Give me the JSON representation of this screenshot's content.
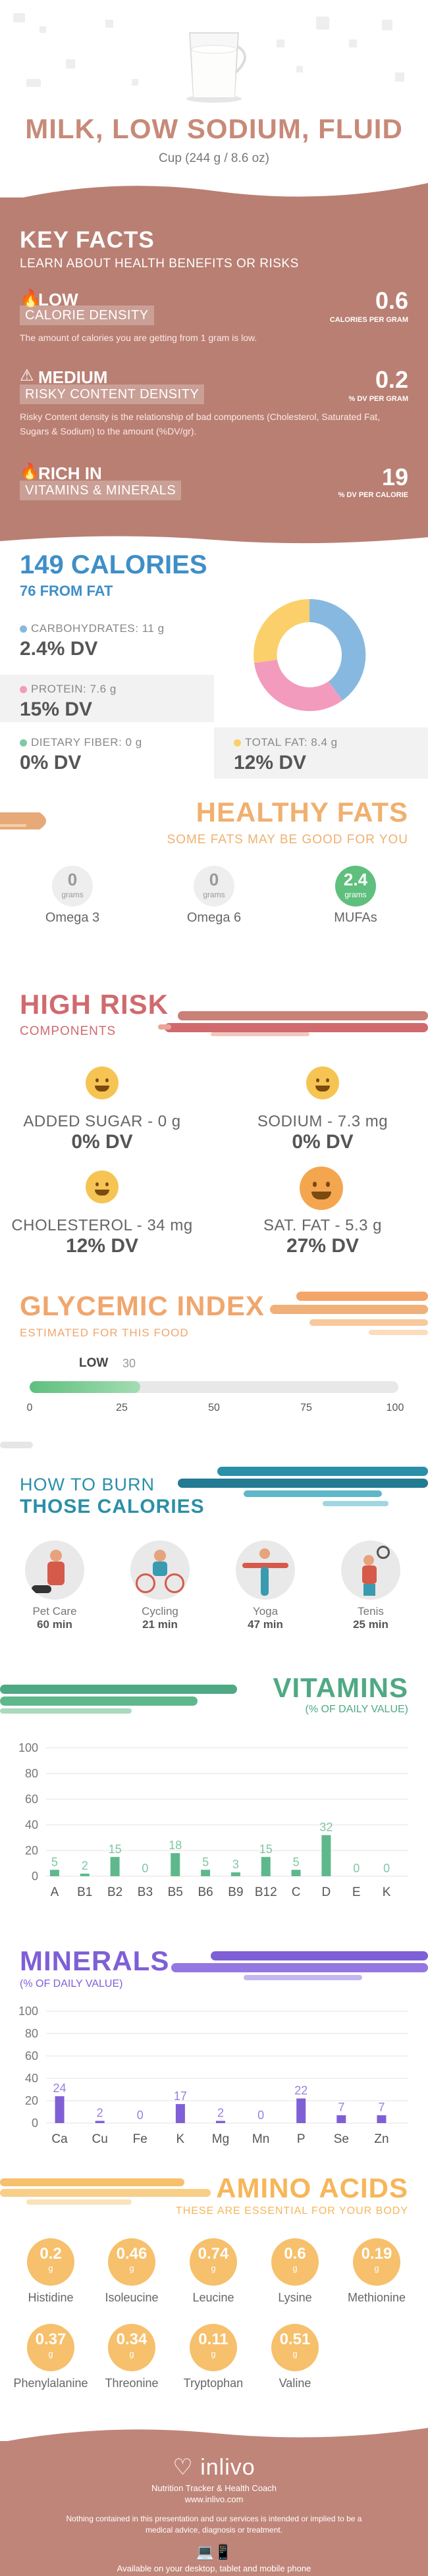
{
  "header": {
    "title": "MILK, LOW SODIUM, FLUID",
    "serving": "Cup (244 g / 8.6 oz)"
  },
  "key_facts": {
    "title": "KEY FACTS",
    "subtitle": "LEARN ABOUT HEALTH BENEFITS OR RISKS",
    "items": [
      {
        "level": "LOW",
        "label": "CALORIE DENSITY",
        "value": "0.6",
        "unit": "CALORIES PER GRAM",
        "desc": "The amount of calories you are getting from 1 gram is low."
      },
      {
        "level": "MEDIUM",
        "label": "RISKY CONTENT DENSITY",
        "value": "0.2",
        "unit": "% DV PER GRAM",
        "desc": "Risky Content density is the relationship of bad components (Cholesterol, Saturated Fat, Sugars & Sodium) to the amount (%DV/gr)."
      },
      {
        "level": "RICH IN",
        "label": "VITAMINS & MINERALS",
        "value": "19",
        "unit": "% DV PER CALORIE",
        "desc": ""
      }
    ]
  },
  "calories": {
    "title": "149 CALORIES",
    "from_fat": "76 FROM FAT",
    "nutrients": [
      {
        "label": "CARBOHYDRATES: 11 g",
        "value": "2.4% DV",
        "color": "#87b9e0"
      },
      {
        "label": "PROTEIN: 7.6 g",
        "value": "15% DV",
        "color": "#f39bbd"
      },
      {
        "label": "DIETARY FIBER: 0 g",
        "value": "0% DV",
        "color": "#7ec9a8"
      },
      {
        "label": "TOTAL FAT: 8.4 g",
        "value": "12% DV",
        "color": "#fbd06b"
      }
    ]
  },
  "healthy_fats": {
    "title": "HEALTHY FATS",
    "subtitle": "SOME FATS MAY BE GOOD FOR YOU",
    "items": [
      {
        "value": "0",
        "unit": "grams",
        "name": "Omega 3"
      },
      {
        "value": "0",
        "unit": "grams",
        "name": "Omega 6"
      },
      {
        "value": "2.4",
        "unit": "grams",
        "name": "MUFAs"
      }
    ]
  },
  "high_risk": {
    "title": "HIGH RISK",
    "subtitle": "COMPONENTS",
    "items": [
      {
        "label": "ADDED SUGAR - 0 g",
        "value": "0% DV"
      },
      {
        "label": "SODIUM - 7.3 mg",
        "value": "0% DV"
      },
      {
        "label": "CHOLESTEROL - 34 mg",
        "value": "12% DV"
      },
      {
        "label": "SAT. FAT - 5.3 g",
        "value": "27% DV"
      }
    ]
  },
  "glycemic": {
    "title": "GLYCEMIC INDEX",
    "subtitle": "ESTIMATED FOR THIS FOOD",
    "level": "LOW",
    "value": 30,
    "ticks": [
      "0",
      "25",
      "50",
      "75",
      "100"
    ]
  },
  "burn": {
    "title1": "HOW TO BURN",
    "title2": "THOSE CALORIES",
    "activities": [
      {
        "name": "Pet Care",
        "time": "60 min"
      },
      {
        "name": "Cycling",
        "time": "21 min"
      },
      {
        "name": "Yoga",
        "time": "47 min"
      },
      {
        "name": "Tenis",
        "time": "25 min"
      }
    ]
  },
  "chart_data": [
    {
      "type": "bar",
      "title": "VITAMINS",
      "subtitle": "(% OF DAILY VALUE)",
      "categories": [
        "A",
        "B1",
        "B2",
        "B3",
        "B5",
        "B6",
        "B9",
        "B12",
        "C",
        "D",
        "E",
        "K"
      ],
      "values": [
        5,
        2,
        15,
        0,
        18,
        5,
        3,
        15,
        5,
        32,
        0,
        0
      ],
      "yticks": [
        "0",
        "20",
        "40",
        "60",
        "80",
        "100"
      ],
      "ylim": [
        0,
        100
      ],
      "color": "#5fb88c"
    },
    {
      "type": "bar",
      "title": "MINERALS",
      "subtitle": "(% OF DAILY VALUE)",
      "categories": [
        "Ca",
        "Cu",
        "Fe",
        "K",
        "Mg",
        "Mn",
        "P",
        "Se",
        "Zn"
      ],
      "values": [
        24,
        2,
        0,
        17,
        2,
        0,
        22,
        7,
        7
      ],
      "yticks": [
        "0",
        "20",
        "40",
        "60",
        "80",
        "100"
      ],
      "ylim": [
        0,
        100
      ],
      "color": "#7f5fd6"
    }
  ],
  "amino": {
    "title": "AMINO ACIDS",
    "subtitle": "THESE ARE ESSENTIAL FOR YOUR BODY",
    "unit": "g",
    "items": [
      {
        "value": "0.2",
        "name": "Histidine"
      },
      {
        "value": "0.46",
        "name": "Isoleucine"
      },
      {
        "value": "0.74",
        "name": "Leucine"
      },
      {
        "value": "0.6",
        "name": "Lysine"
      },
      {
        "value": "0.19",
        "name": "Methionine"
      },
      {
        "value": "0.37",
        "name": "Phenylalanine"
      },
      {
        "value": "0.34",
        "name": "Threonine"
      },
      {
        "value": "0.11",
        "name": "Tryptophan"
      },
      {
        "value": "0.51",
        "name": "Valine"
      }
    ]
  },
  "footer": {
    "brand": "inlivo",
    "tagline": "Nutrition Tracker & Health Coach",
    "url": "www.inlivo.com",
    "disclaimer": "Nothing contained in this presentation and our services is intended or implied to be a medical advice, diagnosis or treatment.",
    "available": "Available on your desktop, tablet and mobile phone"
  }
}
